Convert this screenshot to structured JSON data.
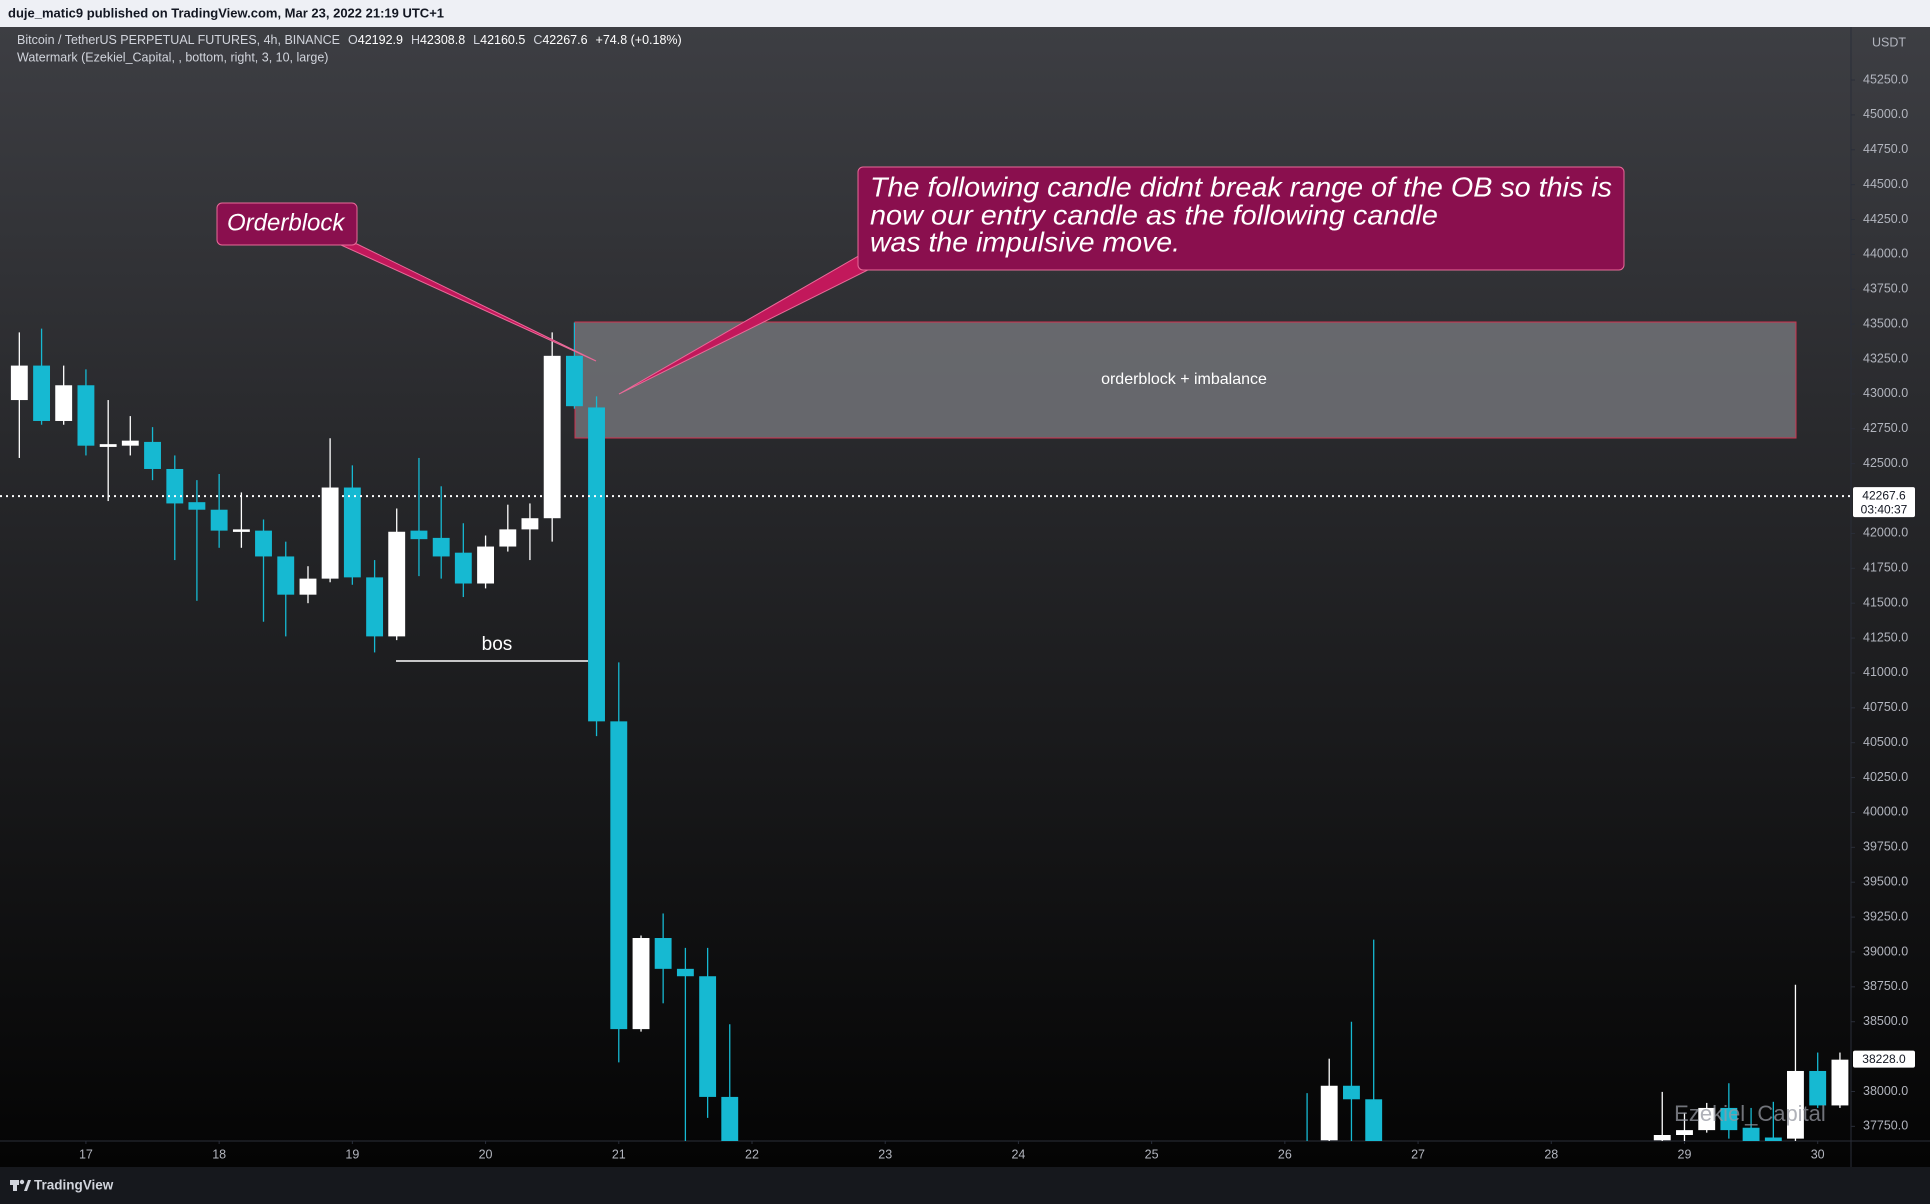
{
  "chart_data": {
    "type": "candlestick",
    "publisher": "duje_matic9 published on TradingView.com, Mar 23, 2022 21:19 UTC+1",
    "symbol": "Bitcoin / TetherUS PERPETUAL FUTURES, 4h, BINANCE",
    "ohlc": [
      {
        "label": "O",
        "value": 42192.9
      },
      {
        "label": "H",
        "value": 42308.8
      },
      {
        "label": "L",
        "value": 42160.5
      },
      {
        "label": "C",
        "value": 42267.6
      }
    ],
    "change": "+74.8 (+0.18%)",
    "indicator": "Watermark (Ezekiel_Capital, , bottom, right, 3, 10, large)",
    "watermark": "Ezekiel_Capital",
    "brand": "TradingView",
    "currency": "USDT",
    "up_color": "#ffffff",
    "down_color": "#16b9d2",
    "x": [
      16.5,
      16.667,
      16.833,
      17,
      17.167,
      17.333,
      17.5,
      17.667,
      17.833,
      18,
      18.167,
      18.333,
      18.5,
      18.667,
      18.833,
      19,
      19.167,
      19.333,
      19.5,
      19.667,
      19.833,
      20,
      20.167,
      20.333,
      20.5,
      20.667,
      20.833,
      21,
      21.167,
      21.333,
      21.5,
      21.667,
      21.833,
      26.167,
      26.333,
      26.5,
      26.667,
      28.833,
      29,
      29.167,
      29.333,
      29.5,
      29.667,
      29.833,
      30,
      30.167
    ],
    "open": [
      42956,
      43203,
      42806,
      43062,
      42620,
      42629,
      42656,
      42462,
      42224,
      42170,
      42011,
      42020,
      41835,
      41561,
      41676,
      42329,
      41685,
      41262,
      42020,
      41968,
      41862,
      41641,
      41906,
      42029,
      42109,
      43273,
      42903,
      40653,
      38447,
      39100,
      38879,
      38826,
      37961,
      37600,
      37650,
      38041,
      37944,
      37650,
      37688,
      37723,
      37882,
      37740,
      37670,
      37662,
      38147,
      37900
    ],
    "high": [
      43441,
      43468,
      43203,
      43176,
      42956,
      42841,
      42762,
      42559,
      42382,
      42426,
      42294,
      42100,
      41941,
      41765,
      42682,
      42488,
      41809,
      42179,
      42541,
      42338,
      42073,
      41985,
      42206,
      42215,
      43441,
      43512,
      42982,
      41076,
      39118,
      39276,
      39029,
      39029,
      38482,
      37988,
      38235,
      38500,
      39088,
      37997,
      37847,
      37918,
      38059,
      37882,
      37926,
      38765,
      38279,
      38279
    ],
    "low": [
      42541,
      42779,
      42779,
      42559,
      42232,
      42559,
      42382,
      41809,
      41517,
      41897,
      41897,
      41367,
      41262,
      41500,
      41650,
      41632,
      41147,
      41235,
      41694,
      41676,
      41544,
      41606,
      41870,
      41809,
      41941,
      42894,
      40547,
      38209,
      38429,
      38632,
      37600,
      37811,
      37400,
      37300,
      37500,
      37500,
      37400,
      37600,
      37600,
      37705,
      37662,
      37580,
      37580,
      37620,
      37882,
      37882
    ],
    "close": [
      43203,
      42806,
      43062,
      42629,
      42640,
      42665,
      42462,
      42215,
      42170,
      42020,
      42029,
      41835,
      41561,
      41676,
      42329,
      41685,
      41262,
      42012,
      41959,
      41835,
      41641,
      41906,
      42029,
      42109,
      43273,
      42912,
      40653,
      38447,
      39100,
      38879,
      38826,
      37961,
      37500,
      37500,
      38041,
      37944,
      37550,
      37688,
      37723,
      37882,
      37723,
      37620,
      37630,
      38147,
      37900,
      38228
    ],
    "xlim": [
      16.43,
      30.25
    ],
    "xticks": [
      17,
      18,
      19,
      20,
      21,
      22,
      23,
      24,
      25,
      26,
      27,
      28,
      29,
      30
    ],
    "ylim": [
      37645,
      45630
    ],
    "yticks": [
      {
        "value": 37750,
        "label": "37750.0"
      },
      {
        "value": 38000,
        "label": "38000.0"
      },
      {
        "value": 38500,
        "label": "38500.0"
      },
      {
        "value": 38750,
        "label": "38750.0"
      },
      {
        "value": 39000,
        "label": "39000.0"
      },
      {
        "value": 39250,
        "label": "39250.0"
      },
      {
        "value": 39500,
        "label": "39500.0"
      },
      {
        "value": 39750,
        "label": "39750.0"
      },
      {
        "value": 40000,
        "label": "40000.0"
      },
      {
        "value": 40250,
        "label": "40250.0"
      },
      {
        "value": 40500,
        "label": "40500.0"
      },
      {
        "value": 40750,
        "label": "40750.0"
      },
      {
        "value": 41000,
        "label": "41000.0"
      },
      {
        "value": 41250,
        "label": "41250.0"
      },
      {
        "value": 41500,
        "label": "41500.0"
      },
      {
        "value": 41750,
        "label": "41750.0"
      },
      {
        "value": 42000,
        "label": "42000.0"
      },
      {
        "value": 42500,
        "label": "42500.0"
      },
      {
        "value": 42750,
        "label": "42750.0"
      },
      {
        "value": 43000,
        "label": "43000.0"
      },
      {
        "value": 43250,
        "label": "43250.0"
      },
      {
        "value": 43500,
        "label": "43500.0"
      },
      {
        "value": 43750,
        "label": "43750.0"
      },
      {
        "value": 44000,
        "label": "44000.0"
      },
      {
        "value": 44250,
        "label": "44250.0"
      },
      {
        "value": 44500,
        "label": "44500.0"
      },
      {
        "value": 44750,
        "label": "44750.0"
      },
      {
        "value": 45000,
        "label": "45000.0"
      },
      {
        "value": 45250,
        "label": "45250.0"
      }
    ],
    "grid": false,
    "price_markers": [
      {
        "value": 42267.6,
        "countdown": "03:40:37",
        "dotted": true
      },
      {
        "value": 38228,
        "label": "38228.0",
        "dotted": false
      }
    ],
    "annotations": {
      "orderblock": "Orderblock",
      "callout": [
        "The following candle didnt break range of the OB so this is",
        "now our entry candle as the following candle",
        "was the impulsive move."
      ],
      "zone": "orderblock + imbalance",
      "bos": "bos"
    }
  }
}
